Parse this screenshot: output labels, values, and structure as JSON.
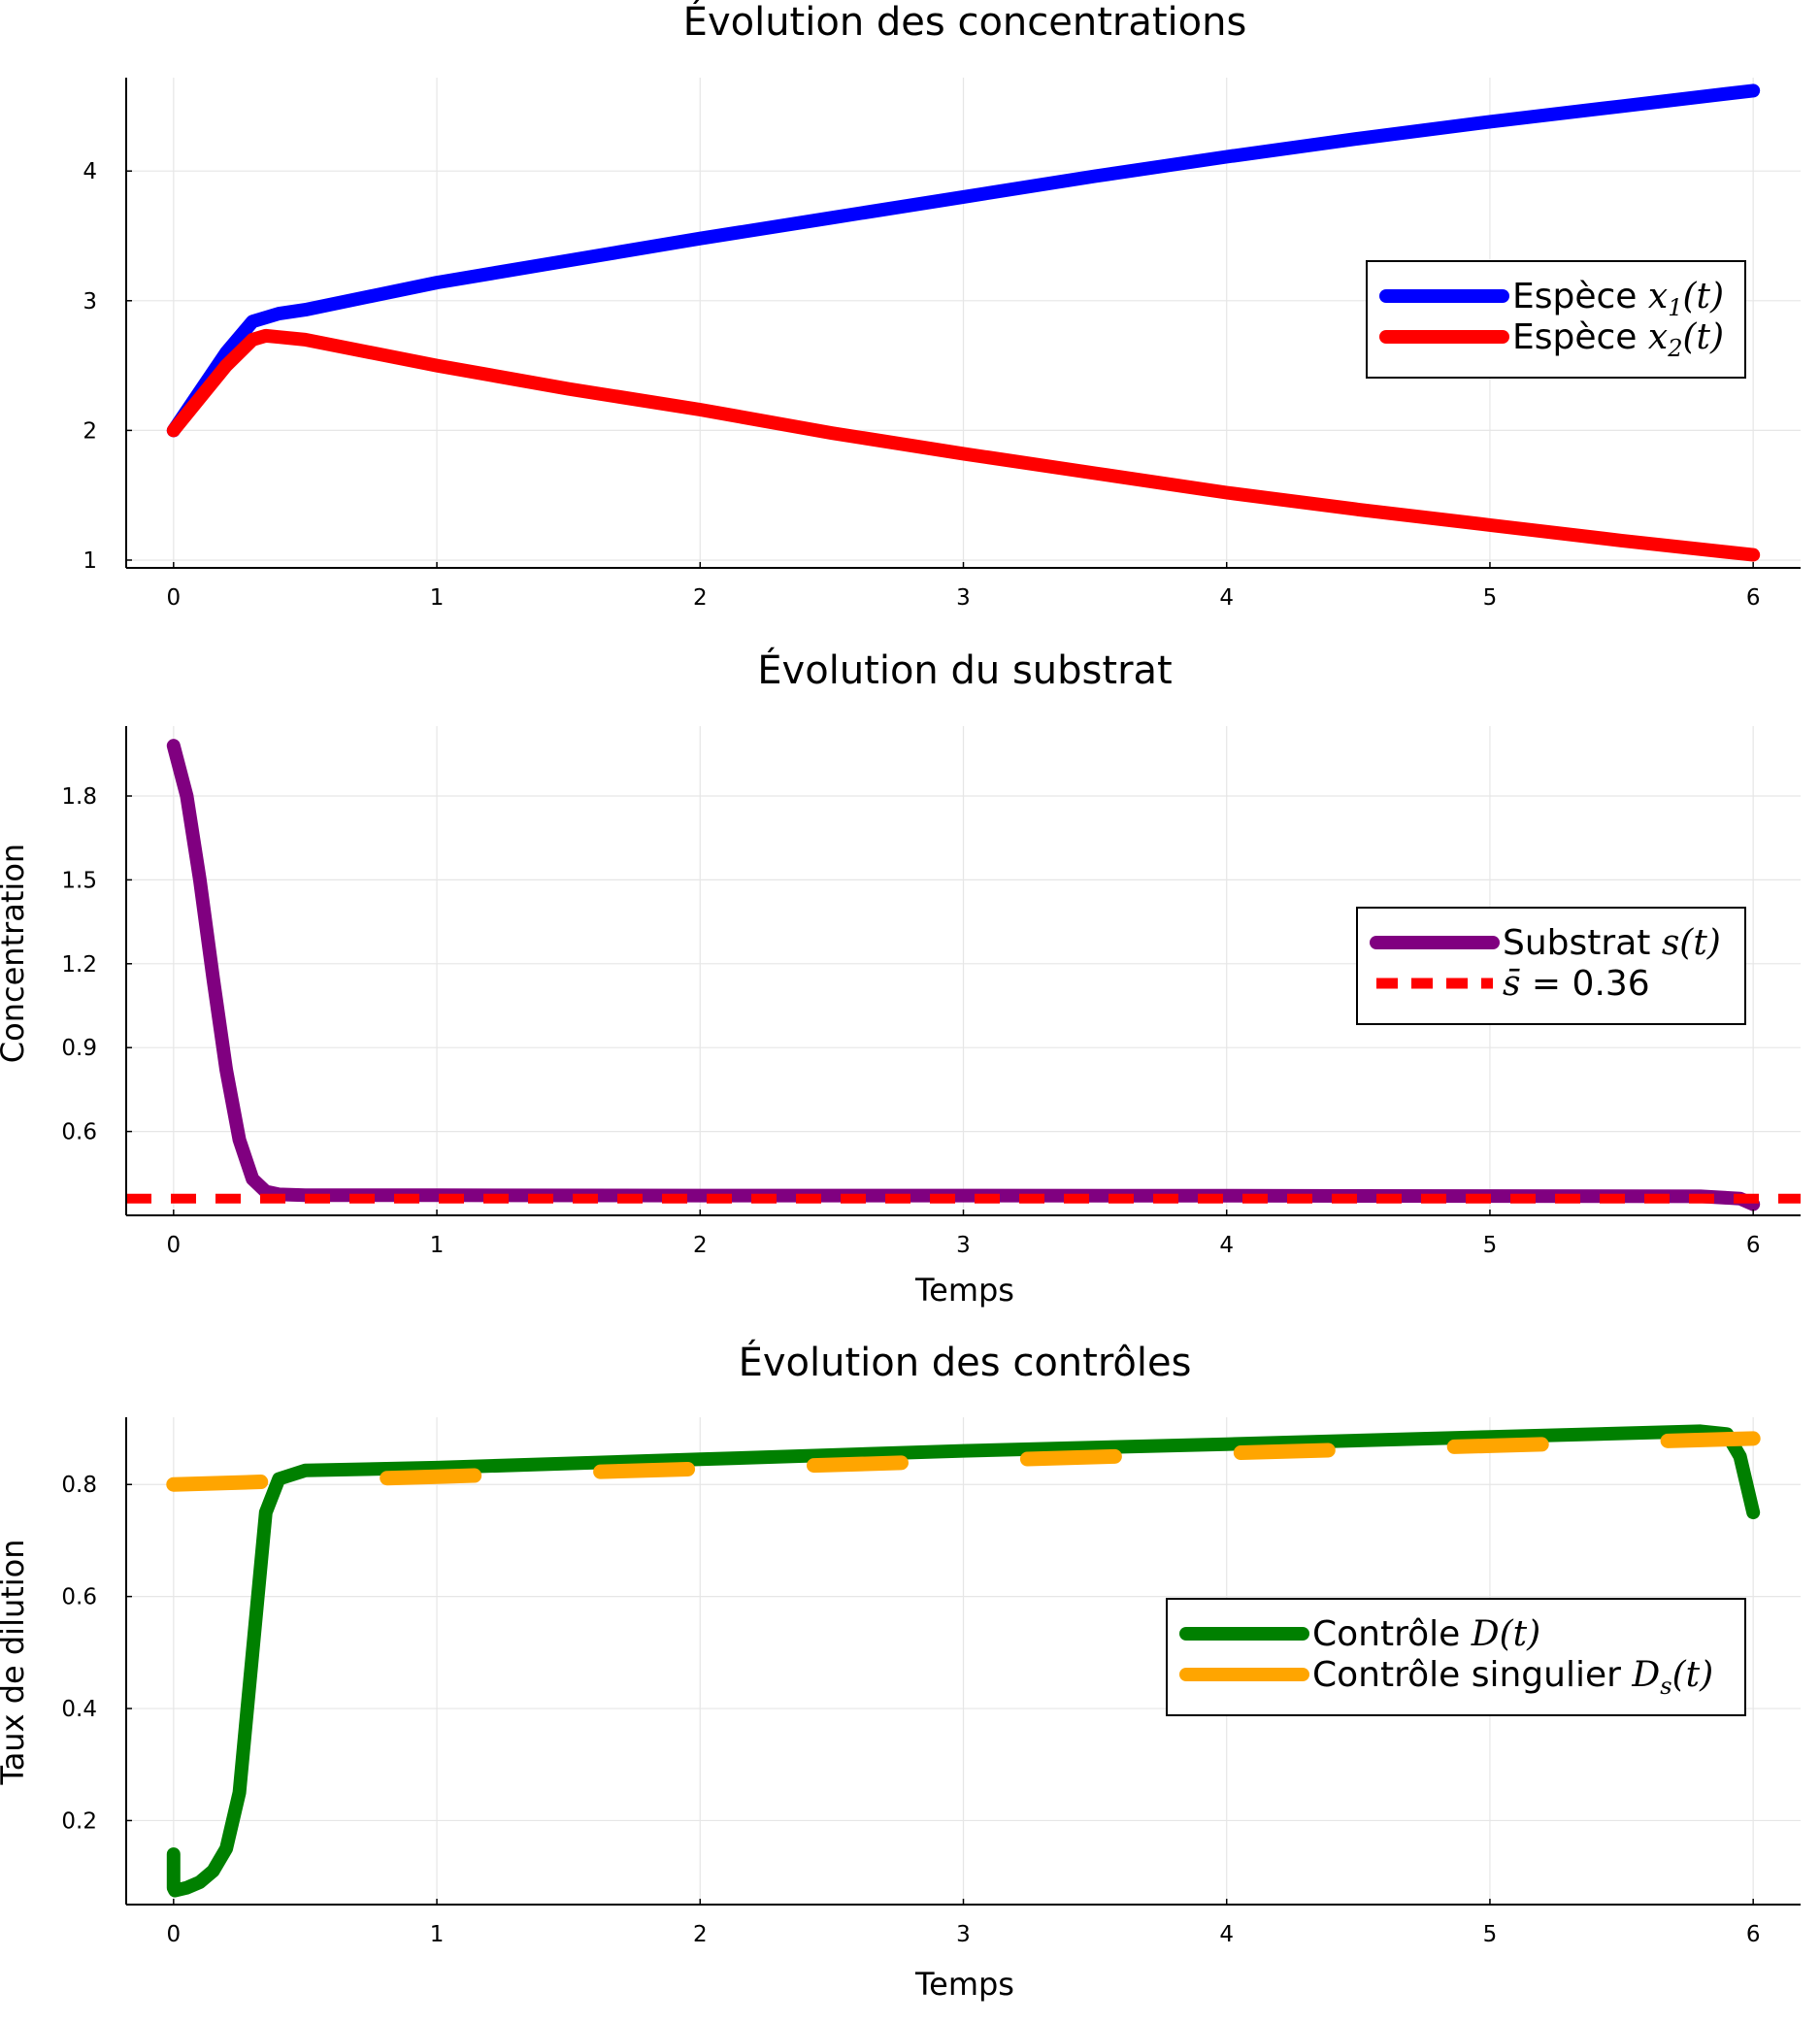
{
  "chart_data": [
    {
      "type": "line",
      "title": "Évolution des concentrations",
      "xlabel": "",
      "ylabel": "",
      "xlim": [
        -0.18,
        6.18
      ],
      "ylim": [
        0.94,
        4.72
      ],
      "xticks": [
        0,
        1,
        2,
        3,
        4,
        5,
        6
      ],
      "yticks": [
        1,
        2,
        3,
        4
      ],
      "xtick_labels": [
        "0",
        "1",
        "2",
        "3",
        "4",
        "5",
        "6"
      ],
      "ytick_labels": [
        "1",
        "2",
        "3",
        "4"
      ],
      "grid": true,
      "legend_position": "right",
      "series": [
        {
          "label_text": "Espèce ",
          "label_math": "x",
          "label_sub": "1",
          "label_end": "(t)",
          "color": "#0000ff",
          "dash": "solid",
          "x": [
            0,
            0.1,
            0.2,
            0.3,
            0.4,
            0.5,
            1,
            1.5,
            2,
            2.5,
            3,
            3.5,
            4,
            4.5,
            5,
            5.5,
            6
          ],
          "y": [
            2.0,
            2.3,
            2.6,
            2.84,
            2.9,
            2.93,
            3.14,
            3.31,
            3.48,
            3.64,
            3.8,
            3.96,
            4.11,
            4.25,
            4.38,
            4.5,
            4.62
          ]
        },
        {
          "label_text": "Espèce ",
          "label_math": "x",
          "label_sub": "2",
          "label_end": "(t)",
          "color": "#ff0000",
          "dash": "solid",
          "x": [
            0,
            0.1,
            0.2,
            0.3,
            0.35,
            0.4,
            0.5,
            1,
            1.5,
            2,
            2.5,
            3,
            3.5,
            4,
            4.5,
            5,
            5.5,
            6
          ],
          "y": [
            2.0,
            2.25,
            2.5,
            2.7,
            2.73,
            2.72,
            2.7,
            2.5,
            2.32,
            2.16,
            1.98,
            1.82,
            1.67,
            1.52,
            1.39,
            1.27,
            1.15,
            1.04
          ]
        }
      ]
    },
    {
      "type": "line",
      "title": "Évolution du substrat",
      "xlabel": "Temps",
      "ylabel": "Concentration",
      "xlim": [
        -0.18,
        6.18
      ],
      "ylim": [
        0.3,
        2.05
      ],
      "xticks": [
        0,
        1,
        2,
        3,
        4,
        5,
        6
      ],
      "yticks": [
        0.6,
        0.9,
        1.2,
        1.5,
        1.8
      ],
      "xtick_labels": [
        "0",
        "1",
        "2",
        "3",
        "4",
        "5",
        "6"
      ],
      "ytick_labels": [
        "0.6",
        "0.9",
        "1.2",
        "1.5",
        "1.8"
      ],
      "grid": true,
      "legend_position": "right",
      "series": [
        {
          "label_text": "Substrat ",
          "label_math": "s(t)",
          "color": "#800080",
          "dash": "solid",
          "x": [
            0,
            0.05,
            0.1,
            0.15,
            0.2,
            0.25,
            0.3,
            0.35,
            0.4,
            0.5,
            1,
            2,
            3,
            4,
            5,
            5.8,
            5.95,
            6
          ],
          "y": [
            1.98,
            1.8,
            1.5,
            1.15,
            0.82,
            0.57,
            0.43,
            0.385,
            0.375,
            0.372,
            0.372,
            0.371,
            0.371,
            0.37,
            0.369,
            0.368,
            0.36,
            0.34
          ]
        },
        {
          "label_text": "",
          "label_math": "s̄",
          "label_end": " = 0.36",
          "color": "#ff0000",
          "dash": "dashed",
          "x": [
            -0.18,
            6.18
          ],
          "y": [
            0.36,
            0.36
          ]
        }
      ]
    },
    {
      "type": "line",
      "title": "Évolution des contrôles",
      "xlabel": "Temps",
      "ylabel": "Taux de dilution",
      "xlim": [
        -0.18,
        6.18
      ],
      "ylim": [
        0.05,
        0.92
      ],
      "xticks": [
        0,
        1,
        2,
        3,
        4,
        5,
        6
      ],
      "yticks": [
        0.2,
        0.4,
        0.6,
        0.8
      ],
      "xtick_labels": [
        "0",
        "1",
        "2",
        "3",
        "4",
        "5",
        "6"
      ],
      "ytick_labels": [
        "0.2",
        "0.4",
        "0.6",
        "0.8"
      ],
      "grid": true,
      "legend_position": "right",
      "series": [
        {
          "label_text": "Contrôle ",
          "label_math": "D(t)",
          "color": "#008000",
          "dash": "solid",
          "x": [
            0,
            0.0,
            0.005,
            0.05,
            0.1,
            0.15,
            0.2,
            0.25,
            0.3,
            0.35,
            0.4,
            0.5,
            1,
            2,
            3,
            4,
            5,
            5.8,
            5.9,
            5.95,
            6
          ],
          "y": [
            0.14,
            0.08,
            0.075,
            0.08,
            0.09,
            0.11,
            0.15,
            0.25,
            0.5,
            0.75,
            0.81,
            0.825,
            0.83,
            0.845,
            0.86,
            0.872,
            0.885,
            0.895,
            0.89,
            0.85,
            0.75
          ]
        },
        {
          "label_text": "Contrôle singulier ",
          "label_math": "D",
          "label_sub": "s",
          "label_end": "(t)",
          "color": "#ffa500",
          "dash": "dashed",
          "x": [
            0,
            1,
            2,
            3,
            4,
            5,
            6
          ],
          "y": [
            0.8,
            0.814,
            0.828,
            0.842,
            0.856,
            0.869,
            0.882
          ]
        }
      ]
    }
  ]
}
